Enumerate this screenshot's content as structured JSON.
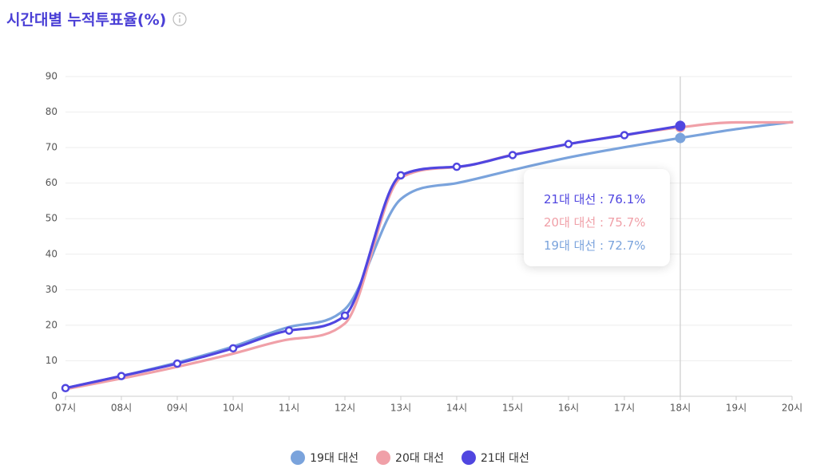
{
  "chart_data": {
    "type": "line",
    "title": "시간대별 누적투표율(%)",
    "categories": [
      "07시",
      "08시",
      "09시",
      "10시",
      "11시",
      "12시",
      "13시",
      "14시",
      "15시",
      "16시",
      "17시",
      "18시",
      "19시",
      "20시"
    ],
    "series": [
      {
        "name": "19대 대선",
        "color": "#7aa3dc",
        "values": [
          2.3,
          5.7,
          9.5,
          14.0,
          19.5,
          24.5,
          55.5,
          60.0,
          63.7,
          67.2,
          70.1,
          72.7,
          75.2,
          77.2
        ]
      },
      {
        "name": "20대 대선",
        "color": "#f0a0a8",
        "values": [
          2.0,
          5.0,
          8.3,
          12.0,
          16.0,
          20.5,
          61.5,
          64.5,
          68.0,
          71.0,
          73.5,
          75.7,
          77.1,
          77.1
        ]
      },
      {
        "name": "21대 대선",
        "color": "#5046e0",
        "values": [
          2.3,
          5.7,
          9.2,
          13.5,
          18.5,
          22.7,
          62.2,
          64.6,
          67.9,
          71.0,
          73.5,
          76.1,
          null,
          null
        ]
      }
    ],
    "ylim": [
      0,
      90
    ],
    "yticks": [
      0,
      10,
      20,
      30,
      40,
      50,
      60,
      70,
      80,
      90
    ],
    "grid": true,
    "legend": "bottom",
    "tooltip_at": "18시",
    "tooltip": [
      {
        "text": "21대 대선 : 76.1%",
        "color": "#5046e0"
      },
      {
        "text": "20대 대선 : 75.7%",
        "color": "#f0a0a8"
      },
      {
        "text": "19대 대선 : 72.7%",
        "color": "#7aa3dc"
      }
    ]
  }
}
